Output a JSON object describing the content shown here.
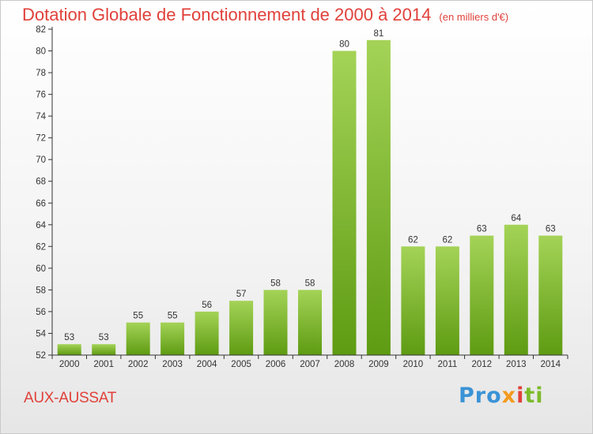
{
  "header": {
    "title": "Dotation Globale de Fonctionnement de 2000 à 2014",
    "unit": "(en milliers d'€)"
  },
  "footer": {
    "commune": "AUX-AUSSAT",
    "logo_parts": [
      "Pro",
      "x",
      "i",
      "ti"
    ]
  },
  "colors": {
    "title": "#e0413a",
    "bar_top": "#a4d357",
    "bar_bottom": "#5e9b12",
    "axis": "#333333"
  },
  "chart_data": {
    "type": "bar",
    "title": "Dotation Globale de Fonctionnement de 2000 à 2014",
    "subtitle": "(en milliers d'€)",
    "xlabel": "",
    "ylabel": "",
    "categories": [
      "2000",
      "2001",
      "2002",
      "2003",
      "2004",
      "2005",
      "2006",
      "2007",
      "2008",
      "2009",
      "2010",
      "2011",
      "2012",
      "2013",
      "2014"
    ],
    "values": [
      53,
      53,
      55,
      55,
      56,
      57,
      58,
      58,
      80,
      81,
      62,
      62,
      63,
      64,
      63
    ],
    "ylim": [
      52,
      82
    ],
    "yticks": [
      52,
      54,
      56,
      58,
      60,
      62,
      64,
      66,
      68,
      70,
      72,
      74,
      76,
      78,
      80,
      82
    ],
    "grid": false,
    "legend": "none"
  }
}
